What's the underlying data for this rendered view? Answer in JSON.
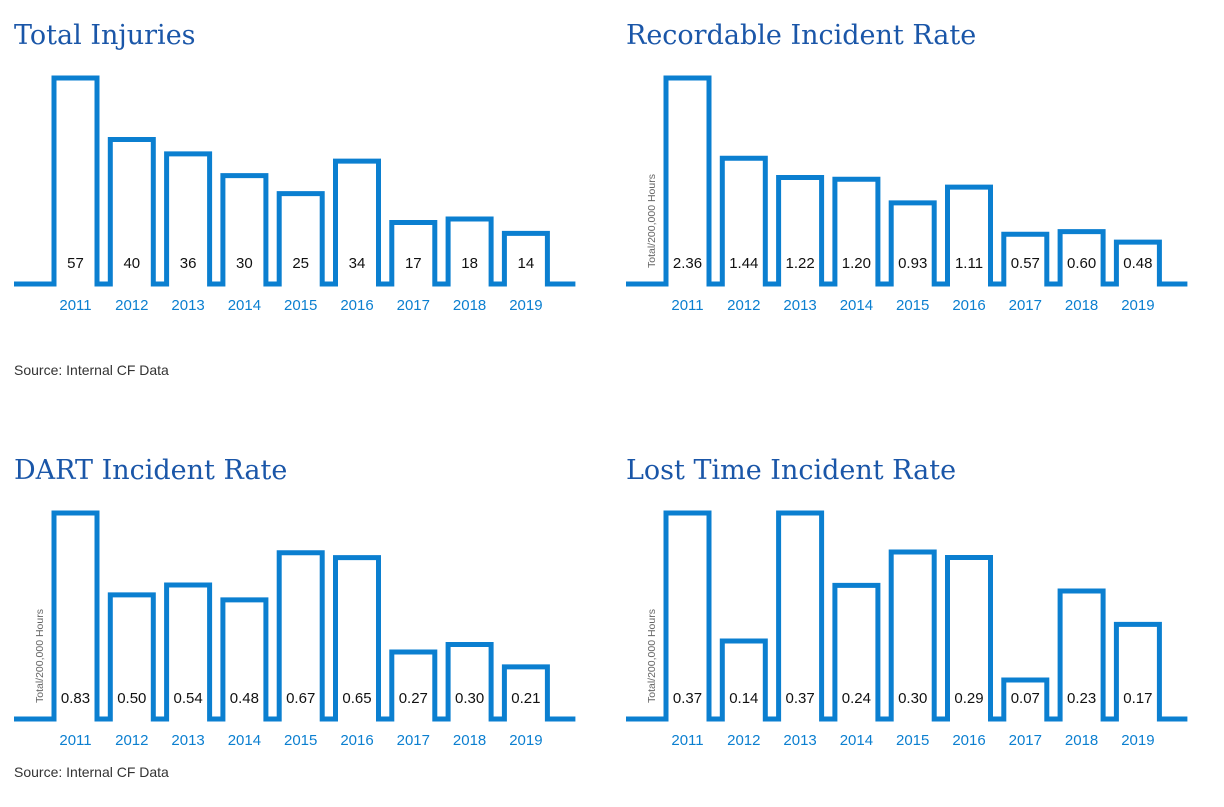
{
  "colors": {
    "bar": "#0b7fd0",
    "title": "#1a56a8",
    "year": "#0b7fd0",
    "value": "#111111",
    "ylabel": "#666666",
    "source": "#333333"
  },
  "source_text": "Source: Internal CF Data",
  "chart_data": [
    {
      "type": "bar",
      "title": "Total Injuries",
      "ylabel": "",
      "categories": [
        "2011",
        "2012",
        "2013",
        "2014",
        "2015",
        "2016",
        "2017",
        "2018",
        "2019"
      ],
      "values": [
        57,
        40,
        36,
        30,
        25,
        34,
        17,
        18,
        14
      ],
      "labels": [
        "57",
        "40",
        "36",
        "30",
        "25",
        "34",
        "17",
        "18",
        "14"
      ],
      "ylim": [
        0,
        57
      ],
      "grid": false,
      "legend": "none"
    },
    {
      "type": "bar",
      "title": "Recordable Incident Rate",
      "ylabel": "Total/200,000 Hours",
      "categories": [
        "2011",
        "2012",
        "2013",
        "2014",
        "2015",
        "2016",
        "2017",
        "2018",
        "2019"
      ],
      "values": [
        2.36,
        1.44,
        1.22,
        1.2,
        0.93,
        1.11,
        0.57,
        0.6,
        0.48
      ],
      "labels": [
        "2.36",
        "1.44",
        "1.22",
        "1.20",
        "0.93",
        "1.11",
        "0.57",
        "0.60",
        "0.48"
      ],
      "ylim": [
        0,
        2.36
      ],
      "grid": false,
      "legend": "none"
    },
    {
      "type": "bar",
      "title": "DART Incident Rate",
      "ylabel": "Total/200,000 Hours",
      "categories": [
        "2011",
        "2012",
        "2013",
        "2014",
        "2015",
        "2016",
        "2017",
        "2018",
        "2019"
      ],
      "values": [
        0.83,
        0.5,
        0.54,
        0.48,
        0.67,
        0.65,
        0.27,
        0.3,
        0.21
      ],
      "labels": [
        "0.83",
        "0.50",
        "0.54",
        "0.48",
        "0.67",
        "0.65",
        "0.27",
        "0.30",
        "0.21"
      ],
      "ylim": [
        0,
        0.83
      ],
      "grid": false,
      "legend": "none"
    },
    {
      "type": "bar",
      "title": "Lost Time Incident Rate",
      "ylabel": "Total/200,000 Hours",
      "categories": [
        "2011",
        "2012",
        "2013",
        "2014",
        "2015",
        "2016",
        "2017",
        "2018",
        "2019"
      ],
      "values": [
        0.37,
        0.14,
        0.37,
        0.24,
        0.3,
        0.29,
        0.07,
        0.23,
        0.17
      ],
      "labels": [
        "0.37",
        "0.14",
        "0.37",
        "0.24",
        "0.30",
        "0.29",
        "0.07",
        "0.23",
        "0.17"
      ],
      "ylim": [
        0,
        0.37
      ],
      "grid": false,
      "legend": "none"
    }
  ]
}
